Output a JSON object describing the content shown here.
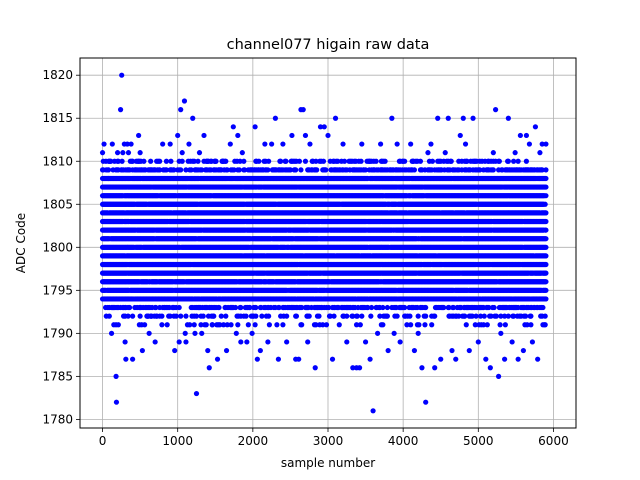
{
  "chart_data": {
    "type": "scatter",
    "title": "channel077 higain raw data",
    "xlabel": "sample number",
    "ylabel": "ADC Code",
    "xlim": [
      -300,
      6300
    ],
    "ylim": [
      1779,
      1822
    ],
    "xticks": [
      0,
      1000,
      2000,
      3000,
      4000,
      5000,
      6000
    ],
    "yticks": [
      1780,
      1785,
      1790,
      1795,
      1800,
      1805,
      1810,
      1815,
      1820
    ],
    "xtick_labels": [
      "0",
      "1000",
      "2000",
      "3000",
      "4000",
      "5000",
      "6000"
    ],
    "ytick_labels": [
      "1780",
      "1785",
      "1790",
      "1795",
      "1800",
      "1805",
      "1810",
      "1815",
      "1820"
    ],
    "grid": true,
    "marker_color": "#0000ff",
    "n_samples": 5900,
    "core_range": [
      1794,
      1808
    ],
    "points": [
      [
        0,
        1811
      ],
      [
        20,
        1812
      ],
      [
        45,
        1810
      ],
      [
        80,
        1808
      ],
      [
        120,
        1790
      ],
      [
        130,
        1812
      ],
      [
        150,
        1791
      ],
      [
        180,
        1785
      ],
      [
        185,
        1782
      ],
      [
        200,
        1811
      ],
      [
        210,
        1791
      ],
      [
        240,
        1816
      ],
      [
        255,
        1820
      ],
      [
        270,
        1811
      ],
      [
        290,
        1812
      ],
      [
        300,
        1789
      ],
      [
        310,
        1787
      ],
      [
        330,
        1812
      ],
      [
        345,
        1811
      ],
      [
        380,
        1812
      ],
      [
        400,
        1787
      ],
      [
        450,
        1810
      ],
      [
        480,
        1813
      ],
      [
        500,
        1811
      ],
      [
        530,
        1788
      ],
      [
        560,
        1791
      ],
      [
        600,
        1792
      ],
      [
        620,
        1790
      ],
      [
        650,
        1792
      ],
      [
        700,
        1789
      ],
      [
        720,
        1792
      ],
      [
        760,
        1810
      ],
      [
        800,
        1812
      ],
      [
        860,
        1791
      ],
      [
        900,
        1812
      ],
      [
        960,
        1788
      ],
      [
        1000,
        1813
      ],
      [
        1020,
        1789
      ],
      [
        1040,
        1816
      ],
      [
        1060,
        1811
      ],
      [
        1090,
        1817
      ],
      [
        1100,
        1790
      ],
      [
        1110,
        1789
      ],
      [
        1150,
        1812
      ],
      [
        1160,
        1791
      ],
      [
        1200,
        1815
      ],
      [
        1230,
        1790
      ],
      [
        1250,
        1783
      ],
      [
        1290,
        1811
      ],
      [
        1320,
        1790
      ],
      [
        1350,
        1813
      ],
      [
        1400,
        1788
      ],
      [
        1420,
        1786
      ],
      [
        1460,
        1791
      ],
      [
        1500,
        1810
      ],
      [
        1530,
        1787
      ],
      [
        1560,
        1791
      ],
      [
        1600,
        1810
      ],
      [
        1650,
        1788
      ],
      [
        1700,
        1812
      ],
      [
        1740,
        1814
      ],
      [
        1780,
        1790
      ],
      [
        1800,
        1813
      ],
      [
        1840,
        1789
      ],
      [
        1860,
        1811
      ],
      [
        1920,
        1789
      ],
      [
        1990,
        1790
      ],
      [
        2030,
        1814
      ],
      [
        2060,
        1787
      ],
      [
        2100,
        1788
      ],
      [
        2160,
        1812
      ],
      [
        2200,
        1789
      ],
      [
        2250,
        1812
      ],
      [
        2300,
        1815
      ],
      [
        2340,
        1787
      ],
      [
        2400,
        1812
      ],
      [
        2450,
        1789
      ],
      [
        2520,
        1813
      ],
      [
        2570,
        1787
      ],
      [
        2610,
        1787
      ],
      [
        2640,
        1816
      ],
      [
        2670,
        1816
      ],
      [
        2700,
        1813
      ],
      [
        2730,
        1789
      ],
      [
        2760,
        1812
      ],
      [
        2830,
        1786
      ],
      [
        2900,
        1814
      ],
      [
        2950,
        1814
      ],
      [
        3000,
        1813
      ],
      [
        3060,
        1787
      ],
      [
        3100,
        1815
      ],
      [
        3150,
        1791
      ],
      [
        3200,
        1812
      ],
      [
        3250,
        1789
      ],
      [
        3300,
        1810
      ],
      [
        3330,
        1786
      ],
      [
        3380,
        1786
      ],
      [
        3420,
        1786
      ],
      [
        3450,
        1812
      ],
      [
        3500,
        1789
      ],
      [
        3560,
        1787
      ],
      [
        3600,
        1781
      ],
      [
        3640,
        1810
      ],
      [
        3660,
        1790
      ],
      [
        3700,
        1812
      ],
      [
        3760,
        1810
      ],
      [
        3800,
        1788
      ],
      [
        3850,
        1815
      ],
      [
        3880,
        1790
      ],
      [
        3920,
        1812
      ],
      [
        3960,
        1789
      ],
      [
        4000,
        1810
      ],
      [
        4050,
        1791
      ],
      [
        4100,
        1812
      ],
      [
        4150,
        1788
      ],
      [
        4200,
        1790
      ],
      [
        4250,
        1786
      ],
      [
        4300,
        1782
      ],
      [
        4330,
        1811
      ],
      [
        4370,
        1812
      ],
      [
        4420,
        1786
      ],
      [
        4460,
        1815
      ],
      [
        4500,
        1787
      ],
      [
        4560,
        1811
      ],
      [
        4600,
        1815
      ],
      [
        4650,
        1788
      ],
      [
        4700,
        1787
      ],
      [
        4760,
        1813
      ],
      [
        4800,
        1815
      ],
      [
        4830,
        1812
      ],
      [
        4880,
        1788
      ],
      [
        4930,
        1815
      ],
      [
        5000,
        1789
      ],
      [
        5050,
        1810
      ],
      [
        5100,
        1787
      ],
      [
        5160,
        1786
      ],
      [
        5200,
        1811
      ],
      [
        5230,
        1816
      ],
      [
        5270,
        1785
      ],
      [
        5300,
        1790
      ],
      [
        5350,
        1787
      ],
      [
        5400,
        1815
      ],
      [
        5450,
        1789
      ],
      [
        5490,
        1811
      ],
      [
        5530,
        1787
      ],
      [
        5560,
        1813
      ],
      [
        5600,
        1788
      ],
      [
        5640,
        1813
      ],
      [
        5680,
        1812
      ],
      [
        5720,
        1789
      ],
      [
        5760,
        1814
      ],
      [
        5790,
        1787
      ],
      [
        5820,
        1811
      ],
      [
        5850,
        1812
      ],
      [
        5880,
        1791
      ],
      [
        5900,
        1812
      ]
    ]
  }
}
